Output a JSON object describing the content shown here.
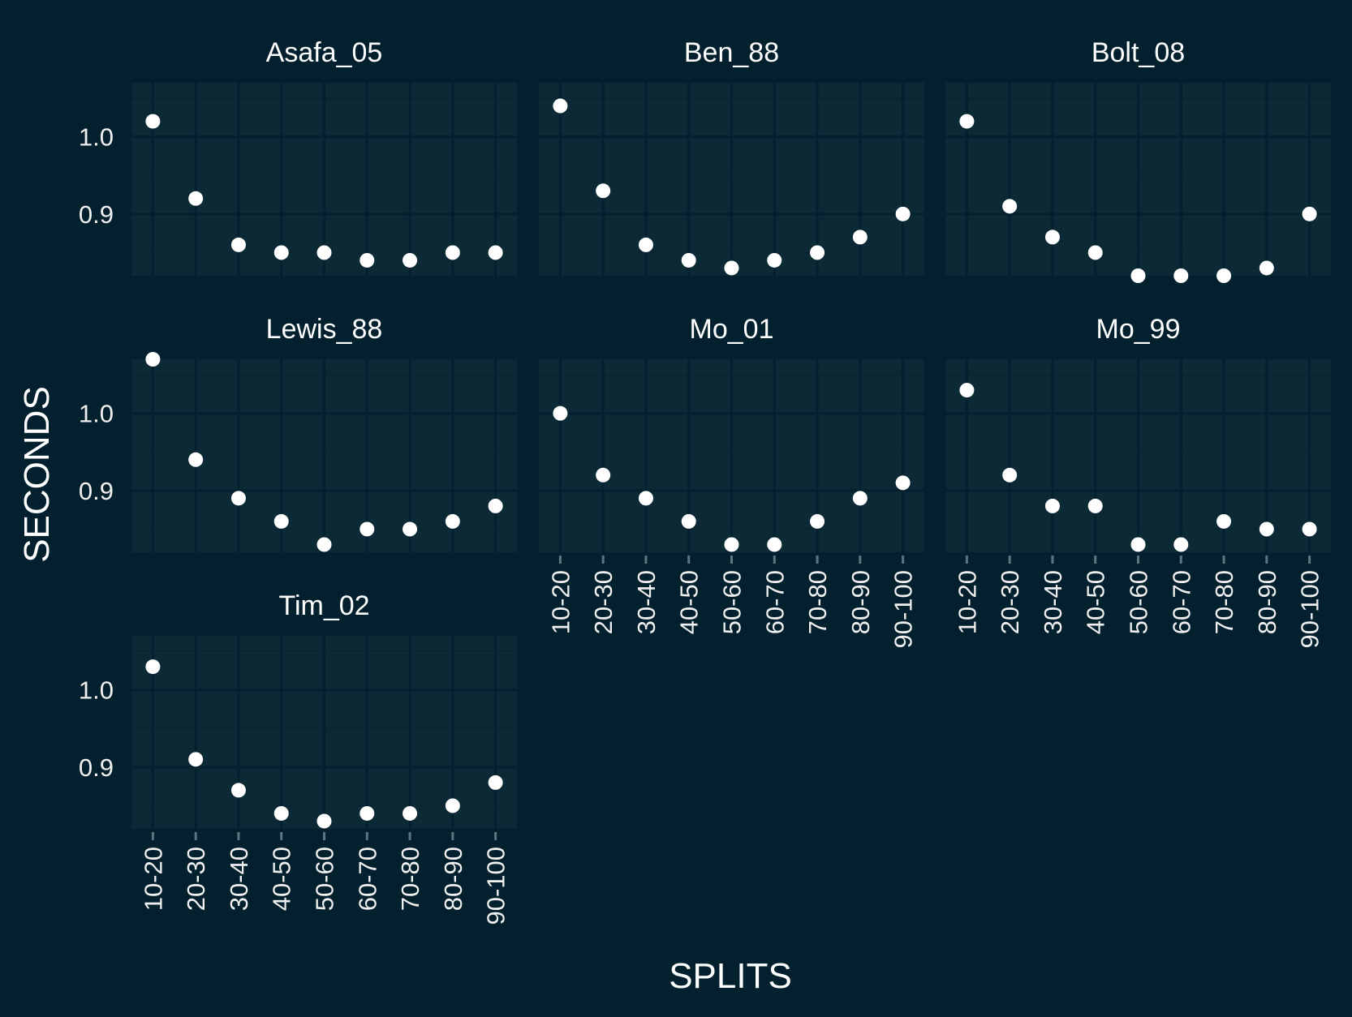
{
  "chart_data": {
    "type": "scatter",
    "facet": "wrap",
    "xlabel": "SPLITS",
    "ylabel": "SECONDS",
    "categories": [
      "10-20",
      "20-30",
      "30-40",
      "40-50",
      "50-60",
      "60-70",
      "70-80",
      "80-90",
      "90-100"
    ],
    "ylim": [
      0.82,
      1.07
    ],
    "yticks": [
      0.9,
      1.0
    ],
    "ytick_labels": [
      "0.9",
      "1.0"
    ],
    "grid": true,
    "colors": {
      "background": "#02202d",
      "panel": "#0c2a36",
      "grid_major": "#02202d",
      "grid_minor": "#0a2531",
      "points": "#ffffff",
      "text": "#ffffff",
      "tick_text": "#f0f0f0",
      "ticks": "#5f7580"
    },
    "series": [
      {
        "name": "Asafa_05",
        "values": [
          1.02,
          0.92,
          0.86,
          0.85,
          0.85,
          0.84,
          0.84,
          0.85,
          0.85
        ]
      },
      {
        "name": "Ben_88",
        "values": [
          1.04,
          0.93,
          0.86,
          0.84,
          0.83,
          0.84,
          0.85,
          0.87,
          0.9
        ]
      },
      {
        "name": "Bolt_08",
        "values": [
          1.02,
          0.91,
          0.87,
          0.85,
          0.82,
          0.82,
          0.82,
          0.83,
          0.9
        ]
      },
      {
        "name": "Lewis_88",
        "values": [
          1.07,
          0.94,
          0.89,
          0.86,
          0.83,
          0.85,
          0.85,
          0.86,
          0.88
        ]
      },
      {
        "name": "Mo_01",
        "values": [
          1.0,
          0.92,
          0.89,
          0.86,
          0.83,
          0.83,
          0.86,
          0.89,
          0.91
        ]
      },
      {
        "name": "Mo_99",
        "values": [
          1.03,
          0.92,
          0.88,
          0.88,
          0.83,
          0.83,
          0.86,
          0.85,
          0.85
        ]
      },
      {
        "name": "Tim_02",
        "values": [
          1.03,
          0.91,
          0.87,
          0.84,
          0.83,
          0.84,
          0.84,
          0.85,
          0.88
        ]
      }
    ]
  }
}
